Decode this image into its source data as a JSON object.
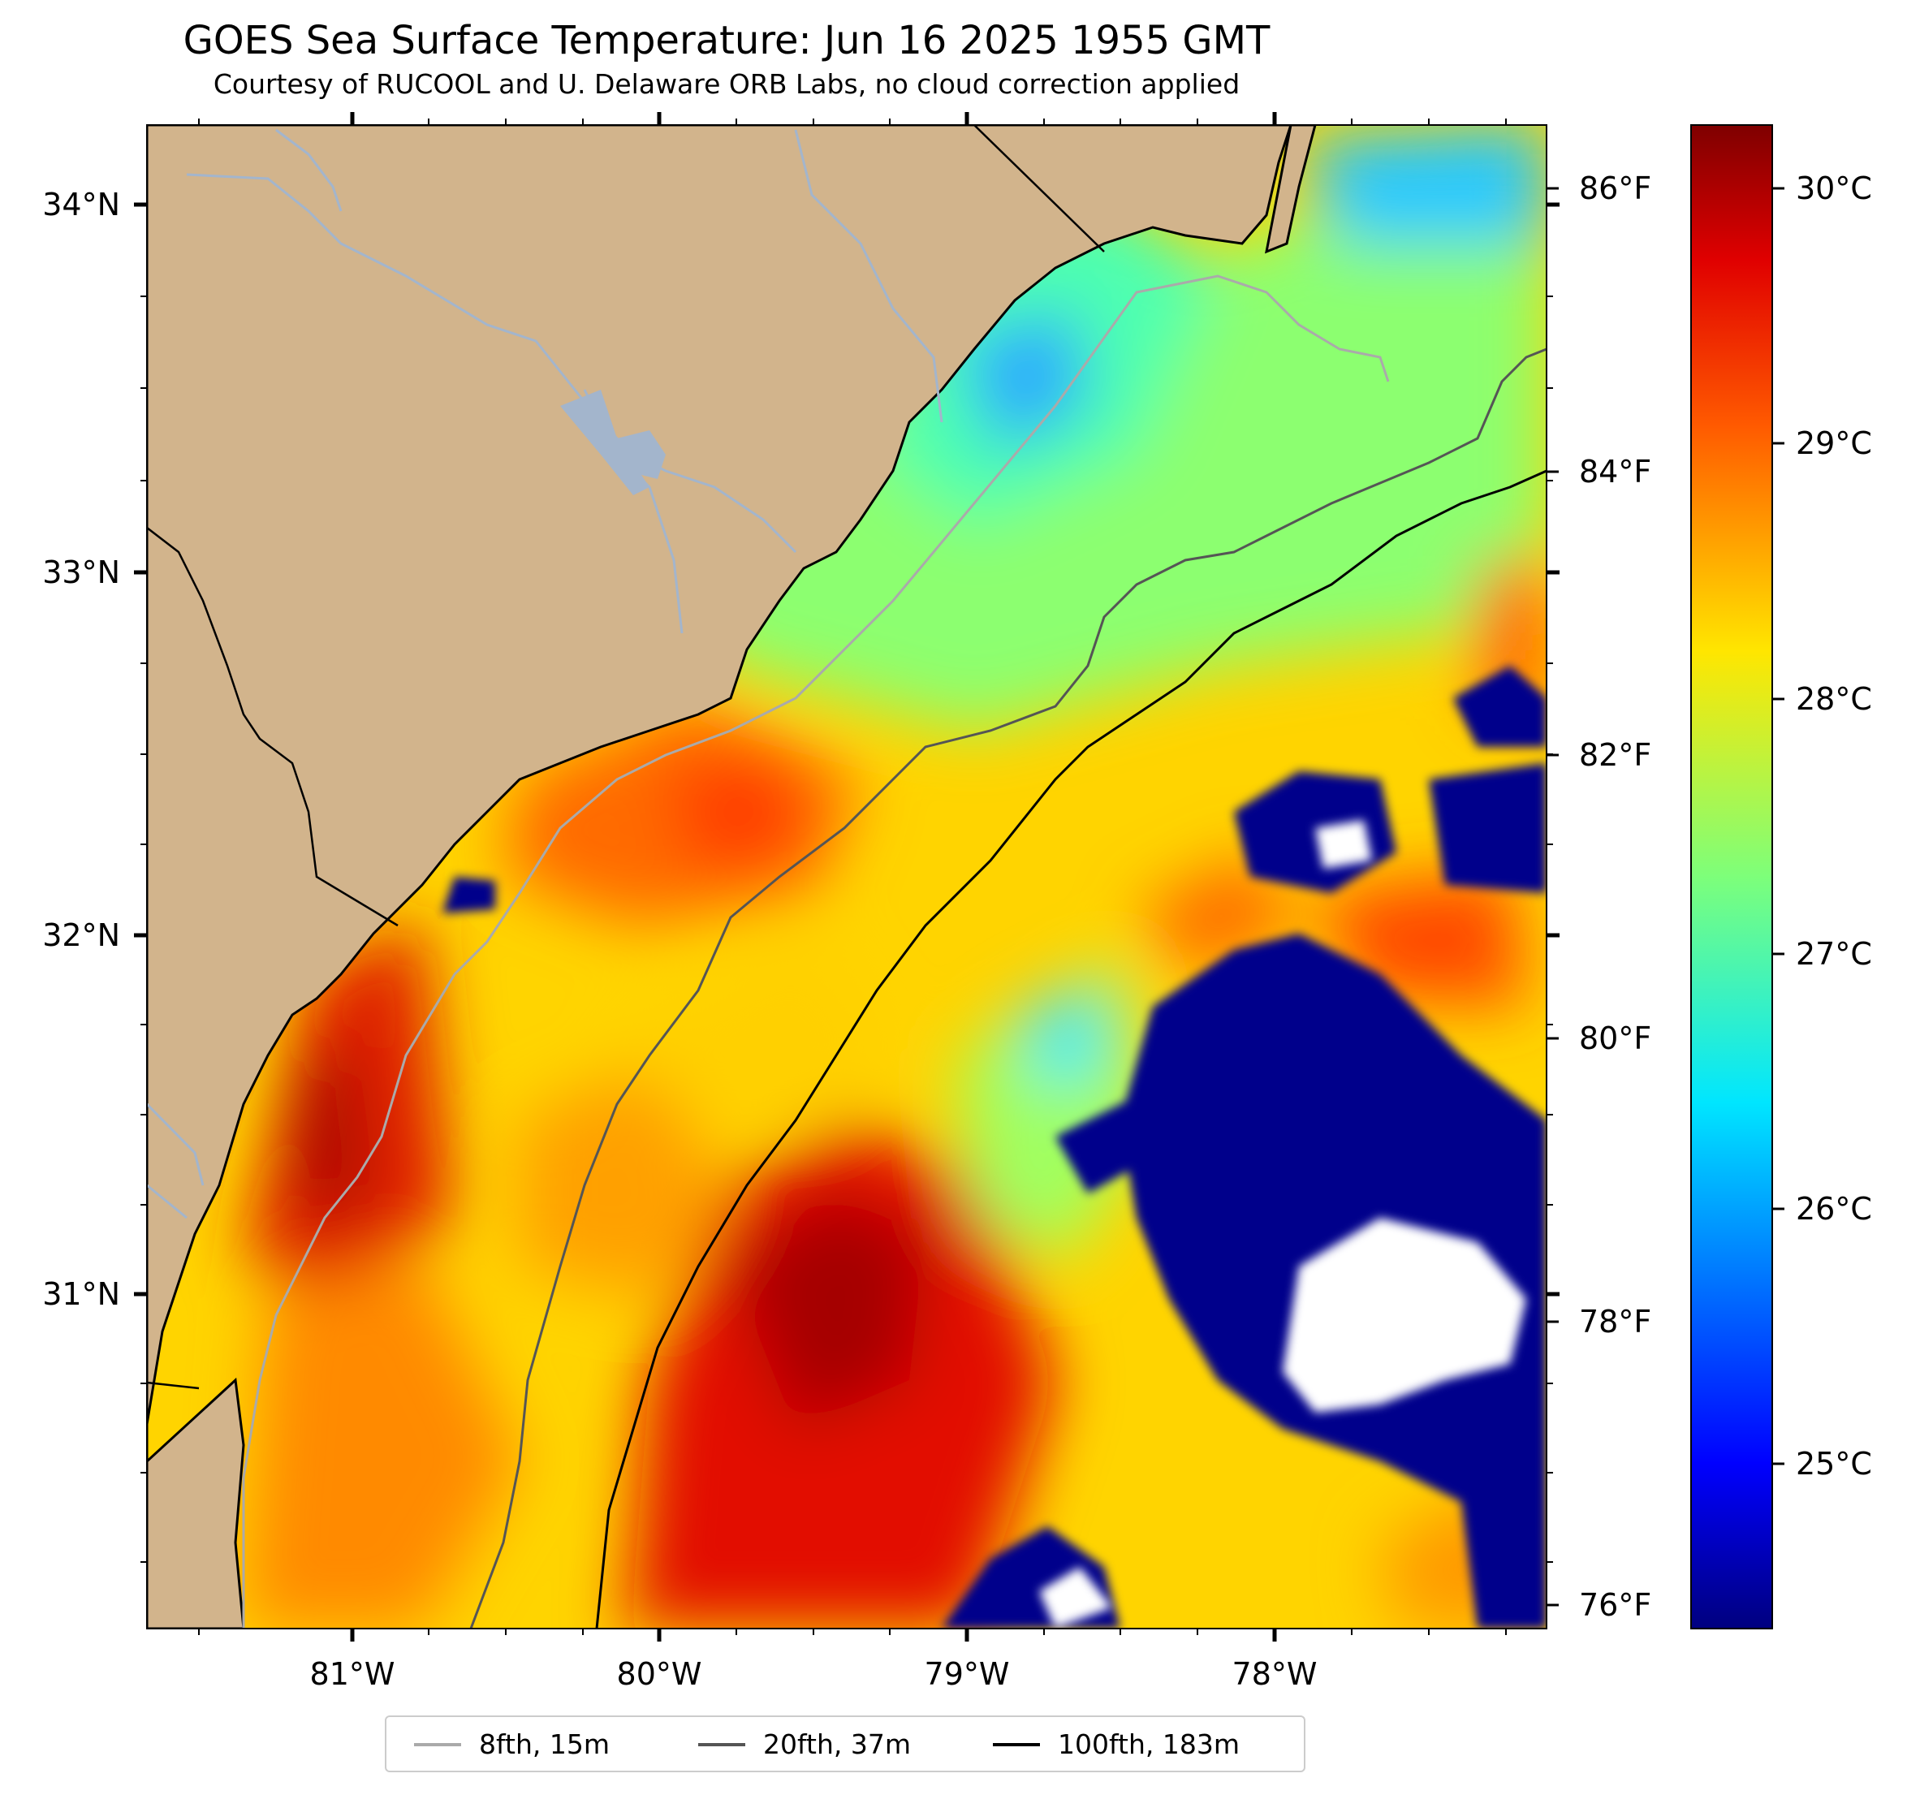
{
  "title": "GOES Sea Surface Temperature: Jun 16 2025 1955 GMT",
  "subtitle": "Courtesy of RUCOOL and U. Delaware ORB Labs, no cloud correction applied",
  "map": {
    "lat_labels": [
      "34°N",
      "33°N",
      "32°N",
      "31°N"
    ],
    "lon_labels": [
      "81°W",
      "80°W",
      "79°W",
      "78°W"
    ],
    "fahrenheit_labels": [
      "86°F",
      "84°F",
      "82°F",
      "80°F",
      "78°F",
      "76°F"
    ],
    "land_color": "#d2b48c",
    "cloud_color": "#00008b",
    "no_data_color": "#ffffff",
    "colormap": "jet"
  },
  "colorbar": {
    "labels": [
      "30°C",
      "29°C",
      "28°C",
      "27°C",
      "26°C",
      "25°C"
    ],
    "range_c": [
      24.3,
      30.3
    ]
  },
  "legend": {
    "items": [
      {
        "label": "8fth, 15m",
        "color": "#aaaaaa"
      },
      {
        "label": "20fth, 37m",
        "color": "#555555"
      },
      {
        "label": "100fth, 183m",
        "color": "#000000"
      }
    ]
  }
}
